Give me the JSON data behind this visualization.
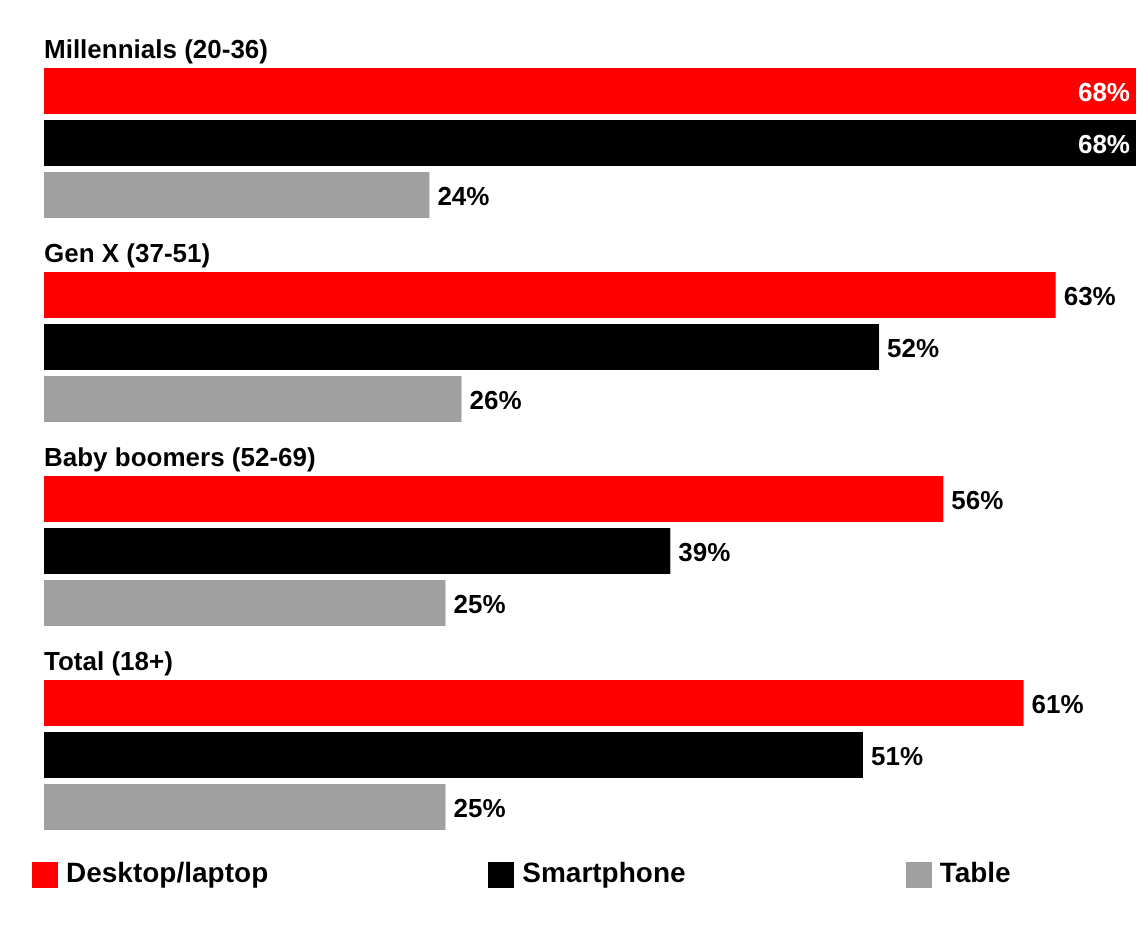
{
  "chart_data": {
    "type": "bar",
    "orientation": "horizontal",
    "categories": [
      "Millennials (20-36)",
      "Gen X (37-51)",
      "Baby boomers (52-69)",
      "Total (18+)"
    ],
    "series": [
      {
        "name": "Desktop/laptop",
        "color": "#ff0000",
        "values": [
          68,
          63,
          56,
          61
        ],
        "value_labels": [
          "68%",
          "63%",
          "56%",
          "61%"
        ]
      },
      {
        "name": "Smartphone",
        "color": "#000000",
        "values": [
          68,
          52,
          39,
          51
        ],
        "value_labels": [
          "68%",
          "52%",
          "39%",
          "51%"
        ]
      },
      {
        "name": "Table",
        "color": "#a0a0a0",
        "values": [
          24,
          26,
          25,
          25
        ],
        "value_labels": [
          "24%",
          "26%",
          "25%",
          "25%"
        ]
      }
    ],
    "legend": "bottom",
    "grid": false
  }
}
